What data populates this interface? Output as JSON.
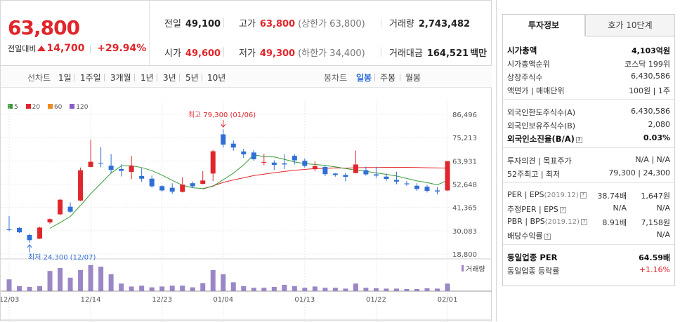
{
  "header": {
    "price": "63,800",
    "change_label": "전일대비",
    "change_value": "14,700",
    "change_rate": "+29.94%",
    "stats": {
      "prev_close_label": "전일",
      "prev_close": "49,100",
      "high_label": "고가",
      "high": "63,800",
      "upper_limit": "(상한가 63,800)",
      "volume_label": "거래량",
      "volume": "2,743,482",
      "open_label": "시가",
      "open": "49,600",
      "low_label": "저가",
      "low": "49,300",
      "lower_limit": "(하한가 34,400)",
      "amount_label": "거래대금",
      "amount": "164,521",
      "amount_unit": "백만"
    }
  },
  "tabs": {
    "line_chart": "선차트",
    "periods": [
      "1일",
      "1주일",
      "3개월",
      "1년",
      "3년",
      "5년",
      "10년"
    ],
    "candle_chart": "봉차트",
    "candle_periods": [
      "일봉",
      "주봉",
      "월봉"
    ],
    "active_candle": "일봉"
  },
  "legend": [
    {
      "label": "5",
      "color": "#3a9a3a"
    },
    {
      "label": "20",
      "color": "#e0262c"
    },
    {
      "label": "60",
      "color": "#f08a1a"
    },
    {
      "label": "120",
      "color": "#8a5cc8"
    }
  ],
  "annotations": {
    "high": "최고 79,300 (01/06)",
    "low": "최저 24,300 (12/07)",
    "volume_label": "거래량"
  },
  "chart_data": {
    "type": "candlestick",
    "price_axis": {
      "ticks": [
        "86,496",
        "75,213",
        "63,931",
        "52,648",
        "41,365",
        "30,083",
        "18,800"
      ],
      "min": 18800,
      "max": 86496
    },
    "date_ticks": [
      "12/03",
      "12/14",
      "12/23",
      "01/04",
      "01/13",
      "01/22",
      "02/01"
    ],
    "candles": [
      {
        "o": 30700,
        "h": 37200,
        "l": 29900,
        "c": 30500,
        "v": 28
      },
      {
        "o": 31400,
        "h": 31800,
        "l": 29000,
        "c": 29300,
        "v": 12
      },
      {
        "o": 28000,
        "h": 28500,
        "l": 24300,
        "c": 25500,
        "v": 10
      },
      {
        "o": 26200,
        "h": 32000,
        "l": 26000,
        "c": 31600,
        "v": 12
      },
      {
        "o": 34100,
        "h": 36000,
        "l": 33500,
        "c": 35700,
        "v": 48
      },
      {
        "o": 38000,
        "h": 45600,
        "l": 37700,
        "c": 45100,
        "v": 55
      },
      {
        "o": 41700,
        "h": 43800,
        "l": 38700,
        "c": 39300,
        "v": 32
      },
      {
        "o": 44700,
        "h": 60700,
        "l": 44400,
        "c": 59400,
        "v": 50
      },
      {
        "o": 61000,
        "h": 74200,
        "l": 60800,
        "c": 63500,
        "v": 62
      },
      {
        "o": 62900,
        "h": 70600,
        "l": 60800,
        "c": 62700,
        "v": 58
      },
      {
        "o": 61600,
        "h": 67200,
        "l": 57900,
        "c": 59600,
        "v": 40
      },
      {
        "o": 60000,
        "h": 62300,
        "l": 56400,
        "c": 59100,
        "v": 18
      },
      {
        "o": 58600,
        "h": 66300,
        "l": 55000,
        "c": 61600,
        "v": 11
      },
      {
        "o": 56600,
        "h": 60300,
        "l": 53800,
        "c": 55300,
        "v": 13
      },
      {
        "o": 55300,
        "h": 56800,
        "l": 50900,
        "c": 51600,
        "v": 9
      },
      {
        "o": 51700,
        "h": 52100,
        "l": 49000,
        "c": 49600,
        "v": 11
      },
      {
        "o": 50900,
        "h": 53100,
        "l": 48000,
        "c": 49000,
        "v": 13
      },
      {
        "o": 48900,
        "h": 55900,
        "l": 48600,
        "c": 52400,
        "v": 13
      },
      {
        "o": 53100,
        "h": 53900,
        "l": 50700,
        "c": 51600,
        "v": 9
      },
      {
        "o": 52800,
        "h": 59000,
        "l": 52600,
        "c": 54400,
        "v": 19
      },
      {
        "o": 57800,
        "h": 69300,
        "l": 54100,
        "c": 68600,
        "v": 50
      },
      {
        "o": 76800,
        "h": 79300,
        "l": 70400,
        "c": 71800,
        "v": 40
      },
      {
        "o": 72300,
        "h": 73800,
        "l": 68900,
        "c": 70400,
        "v": 21
      },
      {
        "o": 68500,
        "h": 69800,
        "l": 65400,
        "c": 67100,
        "v": 12
      },
      {
        "o": 68000,
        "h": 69200,
        "l": 64000,
        "c": 64700,
        "v": 8
      },
      {
        "o": 63200,
        "h": 67300,
        "l": 61800,
        "c": 63400,
        "v": 8
      },
      {
        "o": 63100,
        "h": 64200,
        "l": 59600,
        "c": 62000,
        "v": 10
      },
      {
        "o": 62700,
        "h": 67100,
        "l": 60000,
        "c": 62200,
        "v": 15
      },
      {
        "o": 66400,
        "h": 67200,
        "l": 62200,
        "c": 64200,
        "v": 12
      },
      {
        "o": 64000,
        "h": 65100,
        "l": 60700,
        "c": 61500,
        "v": 8
      },
      {
        "o": 59900,
        "h": 63800,
        "l": 58900,
        "c": 61400,
        "v": 11
      },
      {
        "o": 61000,
        "h": 61500,
        "l": 56500,
        "c": 57500,
        "v": 8
      },
      {
        "o": 57800,
        "h": 57900,
        "l": 56300,
        "c": 57100,
        "v": 8
      },
      {
        "o": 57100,
        "h": 58000,
        "l": 54000,
        "c": 56200,
        "v": 6
      },
      {
        "o": 58000,
        "h": 69000,
        "l": 57900,
        "c": 62200,
        "v": 18
      },
      {
        "o": 59400,
        "h": 61100,
        "l": 56800,
        "c": 57400,
        "v": 8
      },
      {
        "o": 57400,
        "h": 61000,
        "l": 55700,
        "c": 56800,
        "v": 7
      },
      {
        "o": 56300,
        "h": 57800,
        "l": 54100,
        "c": 55200,
        "v": 6
      },
      {
        "o": 54700,
        "h": 58700,
        "l": 52600,
        "c": 53900,
        "v": 6
      },
      {
        "o": 53000,
        "h": 54200,
        "l": 51900,
        "c": 52600,
        "v": 5
      },
      {
        "o": 51900,
        "h": 53100,
        "l": 49400,
        "c": 50300,
        "v": 5
      },
      {
        "o": 51400,
        "h": 52300,
        "l": 48600,
        "c": 49400,
        "v": 7
      },
      {
        "o": 49600,
        "h": 51200,
        "l": 47700,
        "c": 49100,
        "v": 6
      },
      {
        "o": 49600,
        "h": 63800,
        "l": 49300,
        "c": 63800,
        "v": 18
      }
    ],
    "ma5": [
      null,
      null,
      null,
      null,
      31200,
      34000,
      37000,
      42300,
      48000,
      53000,
      58000,
      61500,
      61600,
      60700,
      59200,
      57000,
      54500,
      52100,
      50900,
      50500,
      51600,
      54800,
      58000,
      62000,
      66900,
      66000,
      65800,
      64700,
      63400,
      62600,
      62200,
      61700,
      61000,
      60200,
      59500,
      58900,
      58100,
      57400,
      56600,
      55400,
      54200,
      53400,
      52300,
      54400
    ],
    "ma20": [
      null,
      null,
      null,
      null,
      null,
      null,
      null,
      null,
      null,
      null,
      null,
      null,
      null,
      null,
      null,
      null,
      null,
      null,
      null,
      50300,
      51800,
      53500,
      54700,
      55700,
      56800,
      57500,
      58200,
      58800,
      59400,
      59800,
      60200,
      60300,
      60500,
      60400,
      60600,
      60700,
      60700,
      60800,
      60800,
      60800,
      60700,
      60600,
      60500,
      60400
    ],
    "volume_scale_max": 70
  },
  "side": {
    "tabs": [
      "투자정보",
      "호가 10단계"
    ],
    "rows_group1": [
      {
        "k": "시가총액",
        "v": "4,103억원",
        "bold": true
      },
      {
        "k": "시가총액순위",
        "v": "코스닥 199위"
      },
      {
        "k": "상장주식수",
        "v": "6,430,586"
      },
      {
        "k": "액면가 | 매매단위",
        "v": "100원 | 1주"
      }
    ],
    "rows_group2": [
      {
        "k": "외국인한도주식수(A)",
        "v": "6,430,586"
      },
      {
        "k": "외국인보유주식수(B)",
        "v": "2,080"
      },
      {
        "k": "외국인소진율(B/A)",
        "v": "0.03%",
        "bold": true
      }
    ],
    "rows_group3": [
      {
        "k": "투자의견 | 목표주가",
        "v": "N/A | N/A"
      },
      {
        "k": "52주최고 | 최저",
        "v": "79,300 | 24,300"
      }
    ],
    "rows_group4": [
      {
        "k": "PER | EPS",
        "sub": "(2019.12)",
        "mid": "38.74배",
        "v": "1,647원"
      },
      {
        "k": "추정PER | EPS",
        "sub": "",
        "mid": "N/A",
        "v": "N/A"
      },
      {
        "k": "PBR | BPS",
        "sub": "(2019.12)",
        "mid": "8.91배",
        "v": "7,158원"
      },
      {
        "k": "배당수익률",
        "sub": "",
        "mid": "",
        "v": "N/A"
      }
    ],
    "rows_group5": [
      {
        "k": "동일업종 PER",
        "v": "64.59배",
        "bold": true
      },
      {
        "k": "동일업종 등락률",
        "v": "+1.16%",
        "red": true
      }
    ]
  }
}
